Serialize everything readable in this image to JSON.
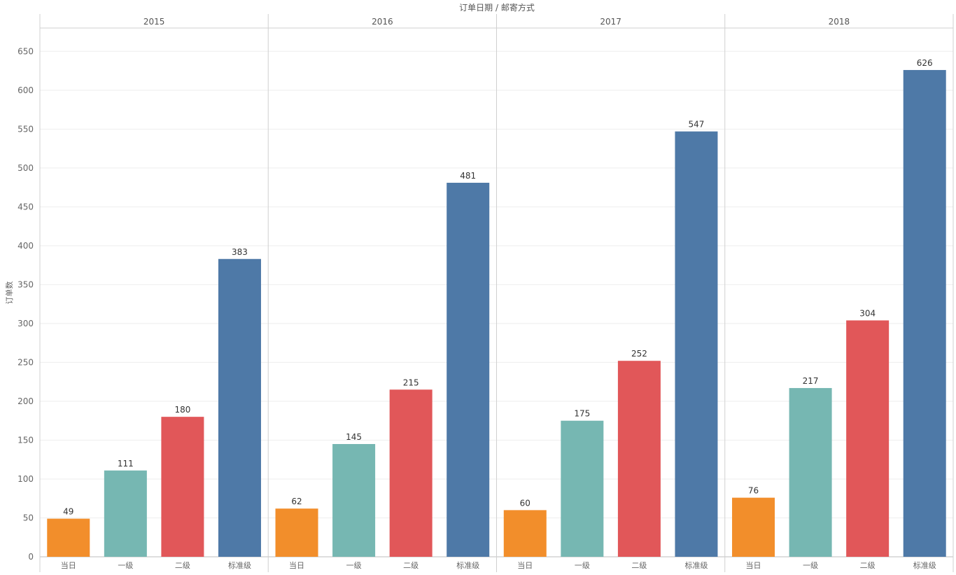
{
  "chart_data": {
    "type": "bar",
    "title": "订单日期 / 邮寄方式",
    "ylabel": "订单数",
    "ylim": [
      0,
      680
    ],
    "yticks": [
      0,
      50,
      100,
      150,
      200,
      250,
      300,
      350,
      400,
      450,
      500,
      550,
      600,
      650
    ],
    "grid": true,
    "categories": [
      "当日",
      "一级",
      "二级",
      "标准级"
    ],
    "category_colors": [
      "#f28e2b",
      "#76b7b2",
      "#e15759",
      "#4e79a7"
    ],
    "panels": [
      {
        "name": "2015",
        "values": [
          49,
          111,
          180,
          383
        ]
      },
      {
        "name": "2016",
        "values": [
          62,
          145,
          215,
          481
        ]
      },
      {
        "name": "2017",
        "values": [
          60,
          175,
          252,
          547
        ]
      },
      {
        "name": "2018",
        "values": [
          76,
          217,
          304,
          626
        ]
      }
    ]
  }
}
